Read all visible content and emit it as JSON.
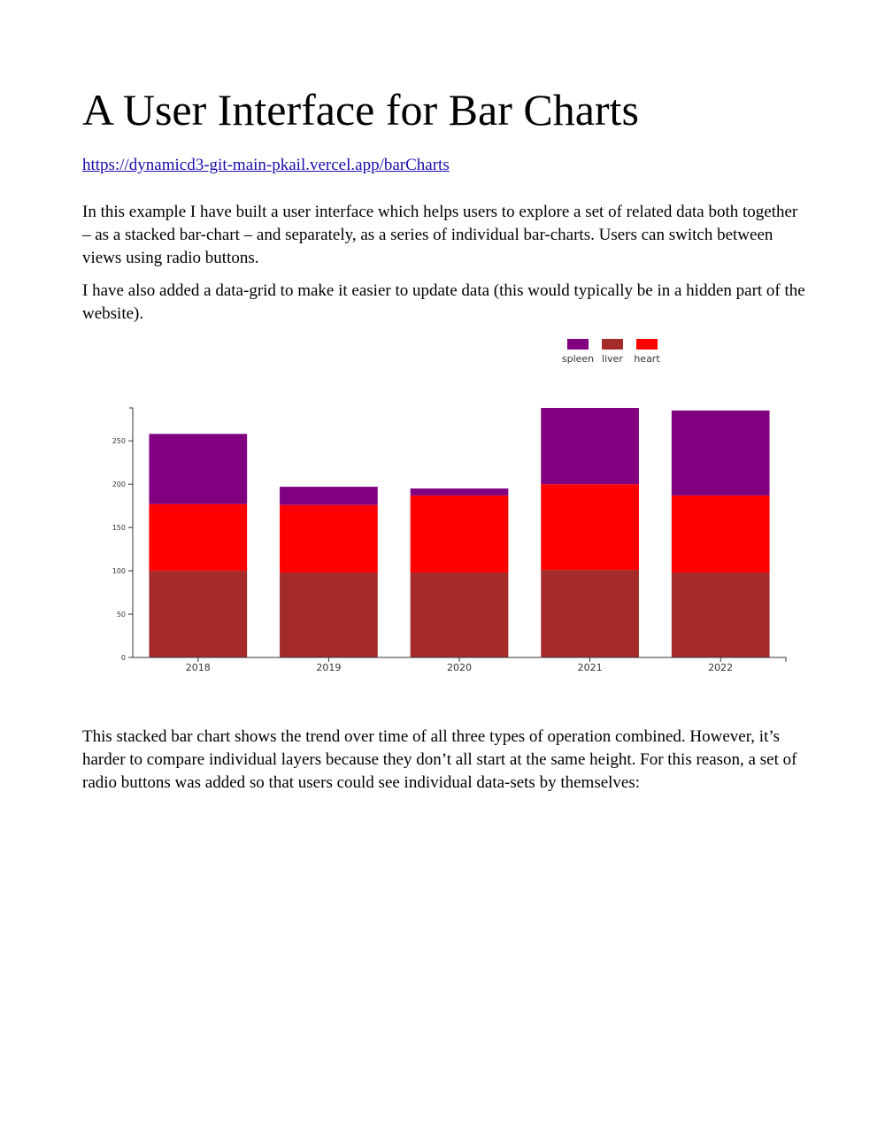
{
  "title": "A User Interface for Bar Charts",
  "link": "https://dynamicd3-git-main-pkail.vercel.app/barCharts",
  "paragraphs": [
    "In this example I have built a user interface which helps users to explore a set of related data both together – as a stacked bar-chart – and separately, as a series of individual bar-charts.  Users can switch between views using radio buttons.",
    "I have also added a data-grid to make it easier to update data (this would typically be in a hidden part of the website).",
    "This stacked bar chart shows the trend over time of all three types of operation combined.  However, it’s harder to compare individual layers because they don’t all start at the same height.  For this reason, a set of radio buttons was added so that users could see individual data-sets by themselves:"
  ],
  "chart_data": {
    "type": "bar",
    "stacked": true,
    "title": "",
    "xlabel": "",
    "ylabel": "",
    "categories": [
      "2018",
      "2019",
      "2020",
      "2021",
      "2022"
    ],
    "series": [
      {
        "name": "liver",
        "color": "#a52a2a",
        "values": [
          100,
          98,
          98,
          101,
          98
        ]
      },
      {
        "name": "heart",
        "color": "#ff0000",
        "values": [
          77,
          78,
          89,
          99,
          89
        ]
      },
      {
        "name": "spleen",
        "color": "#800080",
        "values": [
          81,
          21,
          8,
          88,
          98
        ]
      }
    ],
    "legend_order": [
      "spleen",
      "liver",
      "heart"
    ],
    "legend_position": "top-right",
    "yticks": [
      0,
      50,
      100,
      150,
      200,
      250
    ],
    "ylim": [
      0,
      288
    ],
    "grid": false
  }
}
